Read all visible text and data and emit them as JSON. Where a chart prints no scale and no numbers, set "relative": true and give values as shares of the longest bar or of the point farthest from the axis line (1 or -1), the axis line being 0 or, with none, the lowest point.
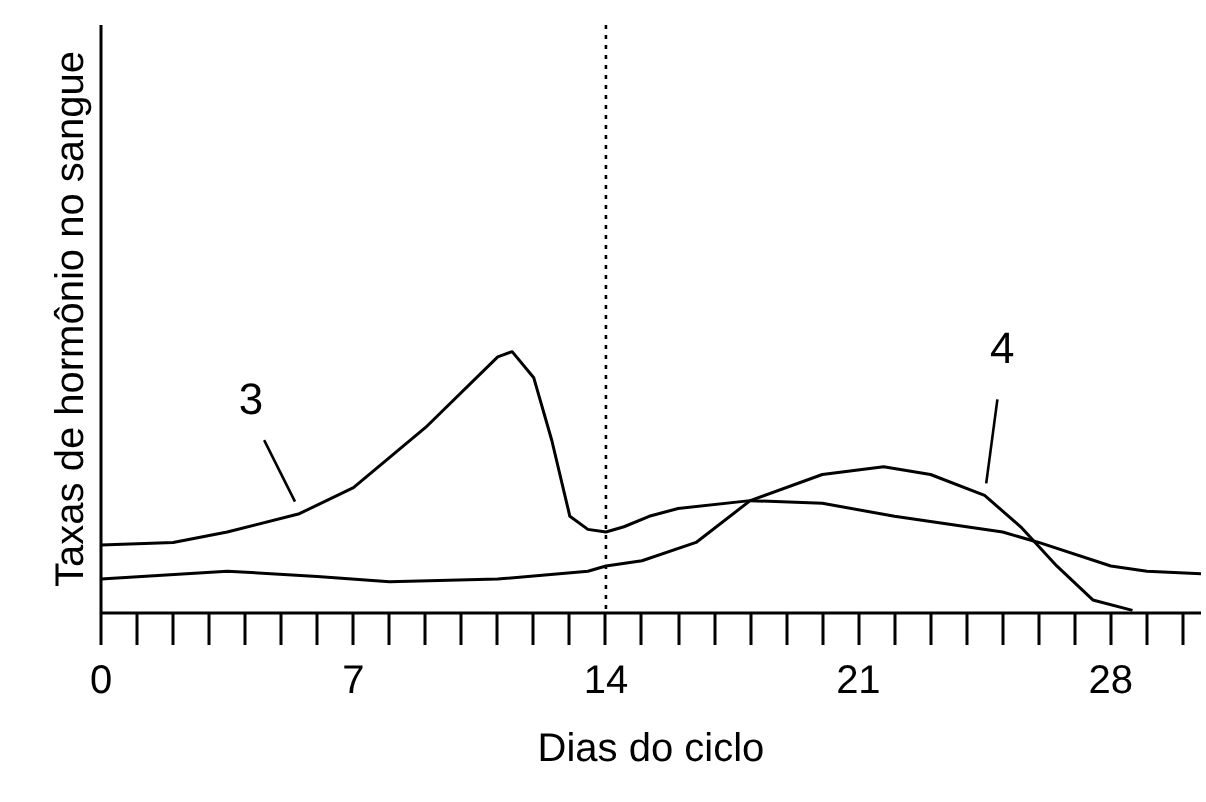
{
  "chart_data": {
    "type": "line",
    "relative": true,
    "xlabel": "Dias do ciclo",
    "ylabel": "Taxas de hormônio no sangue",
    "xlim": [
      0,
      30.5
    ],
    "xticks": [
      0,
      {
        "value": 1,
        "label": null
      },
      {
        "value": 2,
        "label": null
      },
      {
        "value": 3,
        "label": null
      },
      {
        "value": 4,
        "label": null
      },
      {
        "value": 5,
        "label": null
      },
      {
        "value": 6,
        "label": null
      },
      7,
      {
        "value": 8,
        "label": null
      },
      {
        "value": 9,
        "label": null
      },
      {
        "value": 10,
        "label": null
      },
      {
        "value": 11,
        "label": null
      },
      {
        "value": 12,
        "label": null
      },
      {
        "value": 13,
        "label": null
      },
      14,
      {
        "value": 15,
        "label": null
      },
      {
        "value": 16,
        "label": null
      },
      {
        "value": 17,
        "label": null
      },
      {
        "value": 18,
        "label": null
      },
      {
        "value": 19,
        "label": null
      },
      {
        "value": 20,
        "label": null
      },
      21,
      {
        "value": 22,
        "label": null
      },
      {
        "value": 23,
        "label": null
      },
      {
        "value": 24,
        "label": null
      },
      {
        "value": 25,
        "label": null
      },
      {
        "value": 26,
        "label": null
      },
      {
        "value": 27,
        "label": null
      },
      28,
      {
        "value": 29,
        "label": null
      },
      {
        "value": 30,
        "label": null
      }
    ],
    "grid": false,
    "legend": false,
    "marker": "none",
    "line_style": "solid",
    "series": [
      {
        "name": "3",
        "color": "#000000",
        "x": [
          0,
          2,
          3.5,
          5.5,
          7,
          9,
          11,
          11.4,
          12,
          12.5,
          13,
          13.5,
          14,
          14.5,
          15.2,
          16,
          18,
          20,
          22,
          24,
          25,
          26,
          28,
          29,
          30.5
        ],
        "values": [
          0.26,
          0.27,
          0.31,
          0.38,
          0.48,
          0.71,
          0.98,
          1.0,
          0.9,
          0.66,
          0.37,
          0.32,
          0.31,
          0.33,
          0.37,
          0.4,
          0.43,
          0.42,
          0.37,
          0.33,
          0.31,
          0.27,
          0.18,
          0.16,
          0.15
        ]
      },
      {
        "name": "4",
        "color": "#000000",
        "x": [
          0,
          3.5,
          6,
          8,
          11,
          13.5,
          14,
          15,
          16.5,
          18,
          20,
          21.7,
          23,
          24.5,
          25.5,
          26.5,
          27.5,
          28.6
        ],
        "values": [
          0.13,
          0.16,
          0.14,
          0.12,
          0.13,
          0.16,
          0.18,
          0.2,
          0.27,
          0.43,
          0.53,
          0.56,
          0.53,
          0.45,
          0.33,
          0.18,
          0.05,
          0.01
        ]
      }
    ],
    "ref_lines": [
      {
        "axis": "x",
        "value": 14,
        "color": "#000000",
        "line_style": "dotted"
      }
    ]
  }
}
